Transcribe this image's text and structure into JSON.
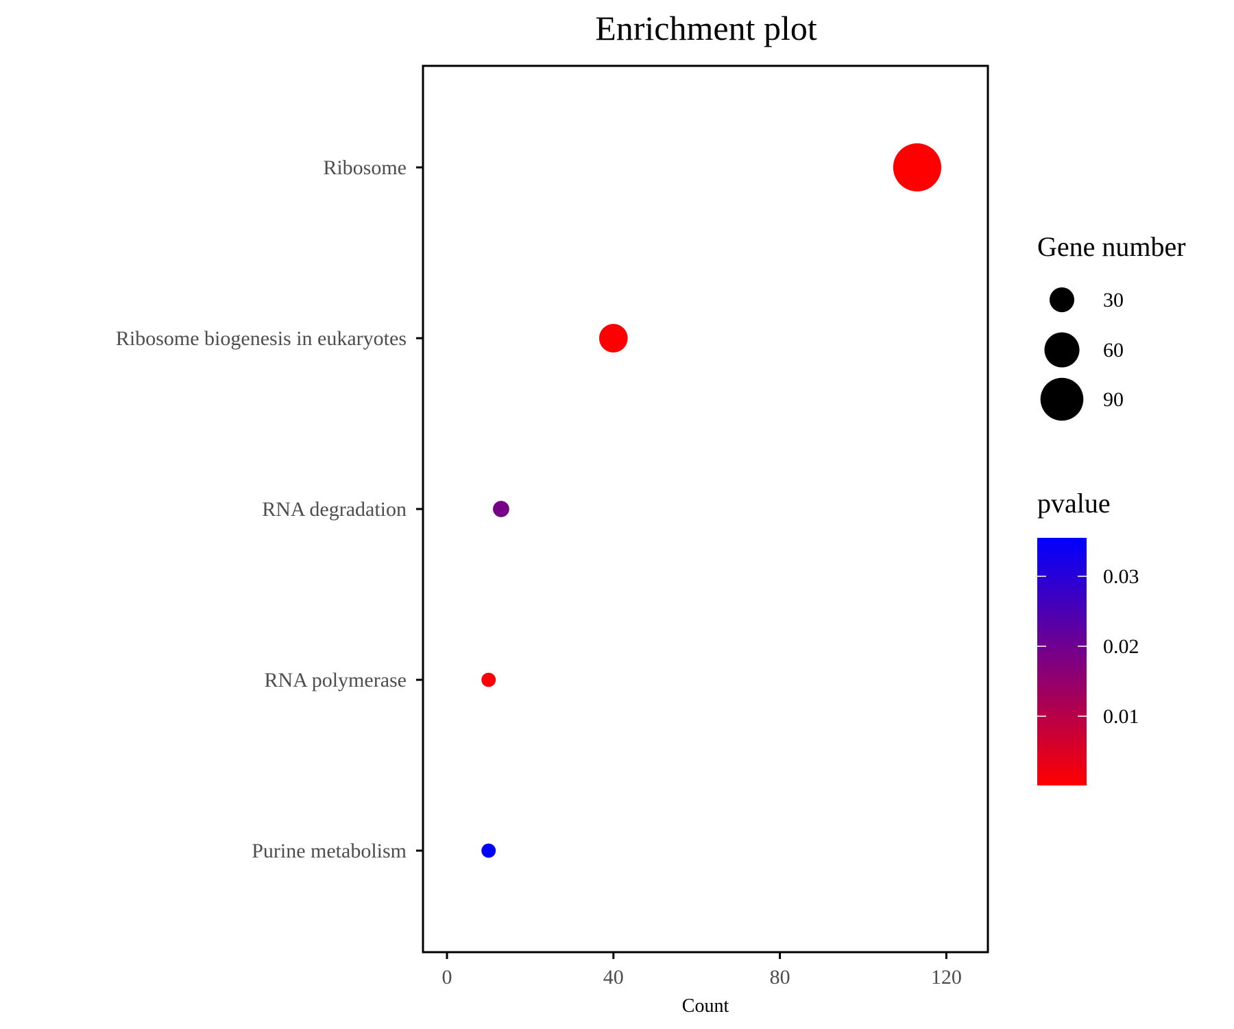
{
  "chart_data": {
    "type": "scatter",
    "title": "Enrichment plot",
    "xlabel": "Count",
    "ylabel": "",
    "xlim": [
      -5,
      130
    ],
    "x_ticks": [
      0,
      40,
      80,
      120
    ],
    "categories": [
      "Ribosome",
      "Ribosome biogenesis in eukaryotes",
      "RNA degradation",
      "RNA polymerase",
      "Purine metabolism"
    ],
    "points": [
      {
        "category": "Ribosome",
        "count": 113,
        "gene_number": 113,
        "pvalue": 0.0001
      },
      {
        "category": "Ribosome biogenesis in eukaryotes",
        "count": 40,
        "gene_number": 40,
        "pvalue": 0.0005
      },
      {
        "category": "RNA degradation",
        "count": 13,
        "gene_number": 13,
        "pvalue": 0.019
      },
      {
        "category": "RNA polymerase",
        "count": 10,
        "gene_number": 10,
        "pvalue": 0.001
      },
      {
        "category": "Purine metabolism",
        "count": 10,
        "gene_number": 10,
        "pvalue": 0.036
      }
    ],
    "size_legend": {
      "title": "Gene number",
      "values": [
        30,
        60,
        90
      ],
      "labels": [
        "30",
        "60",
        "90"
      ]
    },
    "color_legend": {
      "title": "pvalue",
      "low_color": "#ff0000",
      "high_color": "#0000ff",
      "range": [
        0.0001,
        0.0355
      ],
      "ticks": [
        0.01,
        0.02,
        0.03
      ],
      "labels": [
        "0.01",
        "0.02",
        "0.03"
      ]
    },
    "grid": false,
    "legend_position": "right"
  }
}
